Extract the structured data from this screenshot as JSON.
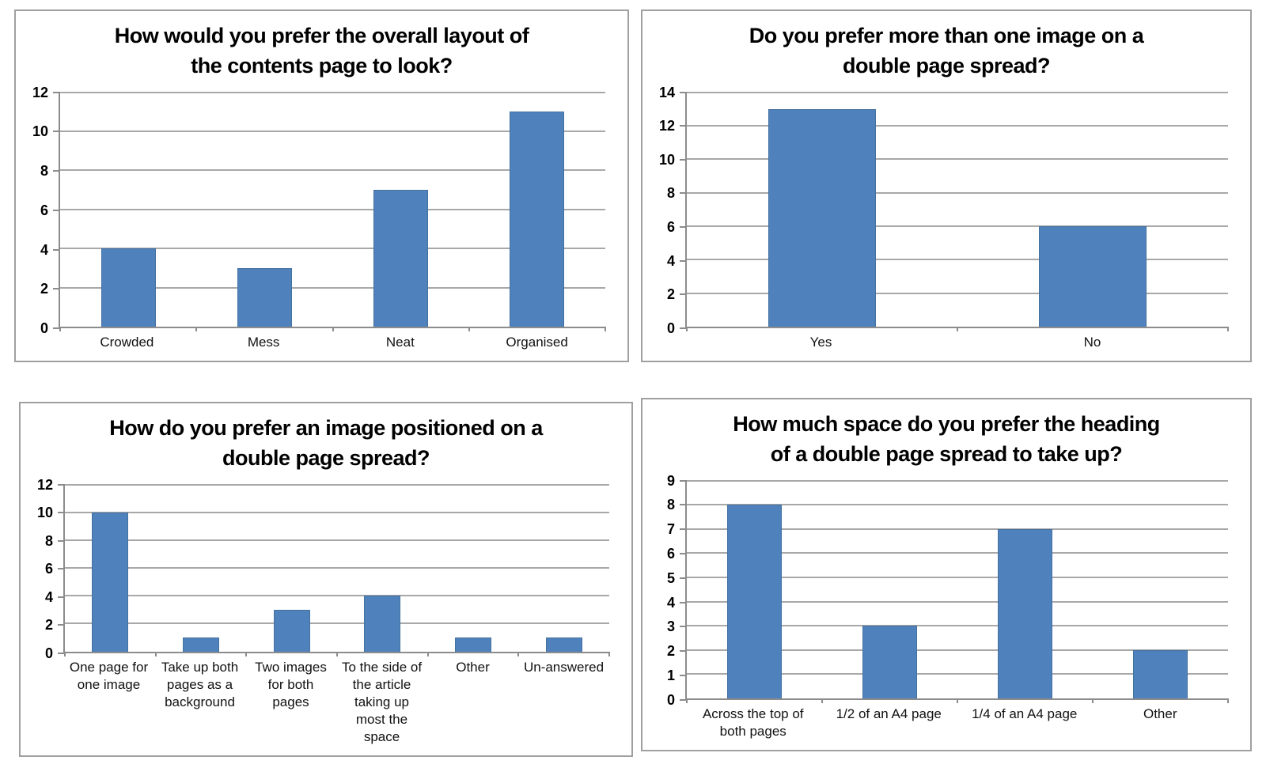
{
  "page": {
    "background": "#ffffff"
  },
  "colors": {
    "bar_fill": "#4f81bd",
    "bar_border": "#44719f",
    "gridline": "#a8a8a8",
    "axis": "#8c8c8c",
    "panel_border": "#a0a0a0",
    "text": "#000000"
  },
  "chart_data": [
    {
      "type": "bar",
      "title": "How would you prefer the overall layout of the contents page to look?",
      "title_lines": [
        "How would you prefer the overall layout of",
        "the contents page to look?"
      ],
      "categories": [
        "Crowded",
        "Mess",
        "Neat",
        "Organised"
      ],
      "values": [
        4,
        3,
        7,
        11
      ],
      "xlabel": "",
      "ylabel": "",
      "ylim": [
        0,
        12
      ],
      "ytick_step": 2,
      "y_ticks": [
        0,
        2,
        4,
        6,
        8,
        10,
        12
      ],
      "grid": true,
      "legend": "none"
    },
    {
      "type": "bar",
      "title": "Do you prefer more than one image on a double page spread?",
      "title_lines": [
        "Do you prefer more than one image on a",
        "double page spread?"
      ],
      "categories": [
        "Yes",
        "No"
      ],
      "values": [
        13,
        6
      ],
      "xlabel": "",
      "ylabel": "",
      "ylim": [
        0,
        14
      ],
      "ytick_step": 2,
      "y_ticks": [
        0,
        2,
        4,
        6,
        8,
        10,
        12,
        14
      ],
      "grid": true,
      "legend": "none"
    },
    {
      "type": "bar",
      "title": "How do you prefer an image positioned on a double page spread?",
      "title_lines": [
        "How do you prefer an image positioned on a",
        "double page spread?"
      ],
      "categories": [
        "One page for one image",
        "Take up both pages as a background",
        "Two images for both pages",
        "To the side of the article taking up most the space",
        "Other",
        "Un-answered"
      ],
      "values": [
        10,
        1,
        3,
        4,
        1,
        1
      ],
      "xlabel": "",
      "ylabel": "",
      "ylim": [
        0,
        12
      ],
      "ytick_step": 2,
      "y_ticks": [
        0,
        2,
        4,
        6,
        8,
        10,
        12
      ],
      "grid": true,
      "legend": "none"
    },
    {
      "type": "bar",
      "title": "How much space do you prefer the heading of a double page spread to take up?",
      "title_lines": [
        "How much space do you prefer the heading",
        "of a double page spread to take up?"
      ],
      "categories": [
        "Across the top of both pages",
        "1/2 of an A4 page",
        "1/4 of an A4 page",
        "Other"
      ],
      "values": [
        8,
        3,
        7,
        2
      ],
      "xlabel": "",
      "ylabel": "",
      "ylim": [
        0,
        9
      ],
      "ytick_step": 1,
      "y_ticks": [
        0,
        1,
        2,
        3,
        4,
        5,
        6,
        7,
        8,
        9
      ],
      "grid": true,
      "legend": "none"
    }
  ]
}
